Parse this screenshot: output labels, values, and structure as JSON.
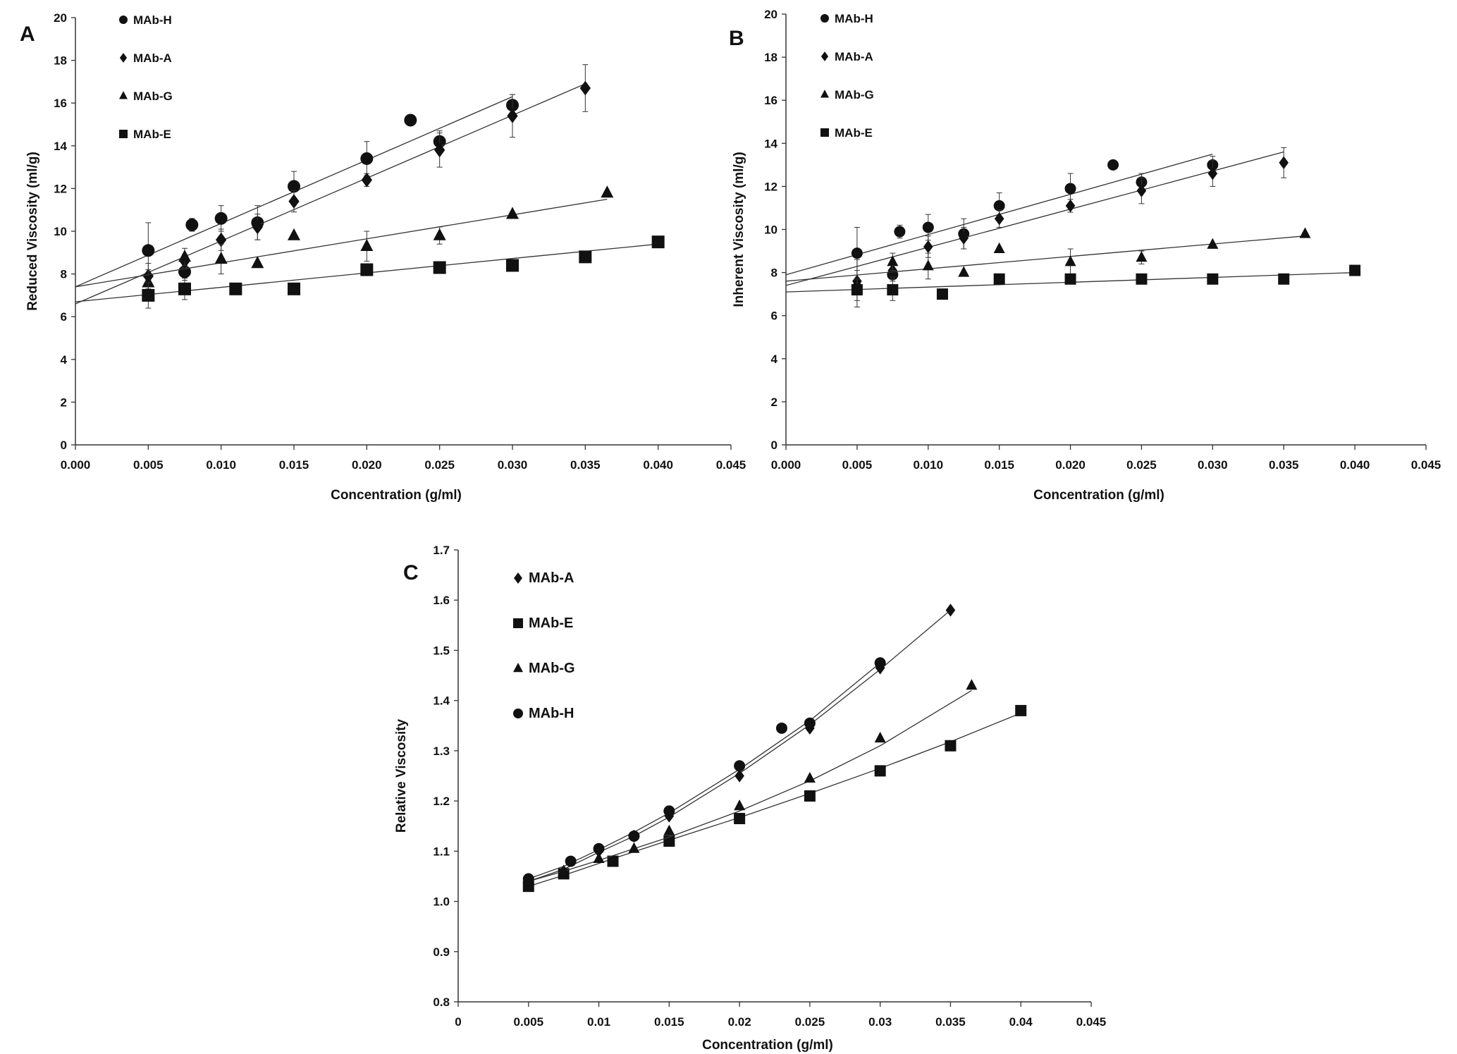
{
  "chart_data": [
    {
      "panel": "A",
      "type": "scatter",
      "xlabel": "Concentration (g/ml)",
      "ylabel": "Reduced Viscosity  (ml/g)",
      "xlim": [
        0,
        0.045
      ],
      "ylim": [
        0,
        20
      ],
      "xticks": [
        "0.000",
        "0.005",
        "0.010",
        "0.015",
        "0.020",
        "0.025",
        "0.030",
        "0.035",
        "0.040",
        "0.045"
      ],
      "yticks": [
        "0",
        "2",
        "4",
        "6",
        "8",
        "10",
        "12",
        "14",
        "16",
        "18",
        "20"
      ],
      "legend_position": "top-left",
      "grid": false,
      "series": [
        {
          "name": "MAb-H",
          "marker": "circle",
          "x": [
            0.005,
            0.0075,
            0.008,
            0.01,
            0.0125,
            0.015,
            0.02,
            0.023,
            0.025,
            0.03
          ],
          "y": [
            9.1,
            8.1,
            10.3,
            10.6,
            10.4,
            12.1,
            13.4,
            15.2,
            14.2,
            15.9
          ],
          "err": [
            1.3,
            0.4,
            0.3,
            0.6,
            0.8,
            0.7,
            0.8,
            0,
            0.5,
            0.5
          ],
          "fit": {
            "x": [
              0,
              0.03
            ],
            "y": [
              7.4,
              16.3
            ]
          }
        },
        {
          "name": "MAb-A",
          "marker": "diamond",
          "x": [
            0.005,
            0.0075,
            0.01,
            0.0125,
            0.015,
            0.02,
            0.025,
            0.03,
            0.035
          ],
          "y": [
            7.9,
            8.6,
            9.6,
            10.2,
            11.4,
            12.4,
            13.8,
            15.4,
            16.7
          ],
          "err": [
            0.6,
            0.3,
            0.5,
            0.6,
            0.5,
            0.3,
            0.8,
            1.0,
            1.1
          ],
          "fit": {
            "x": [
              0,
              0.035
            ],
            "y": [
              6.6,
              16.9
            ]
          }
        },
        {
          "name": "MAb-G",
          "marker": "triangle",
          "x": [
            0.005,
            0.0075,
            0.01,
            0.0125,
            0.015,
            0.02,
            0.025,
            0.03,
            0.0365
          ],
          "y": [
            7.6,
            8.8,
            8.7,
            8.5,
            9.8,
            9.3,
            9.8,
            10.8,
            11.8
          ],
          "err": [
            0.6,
            0.4,
            0.7,
            0,
            0,
            0.7,
            0.4,
            0,
            0
          ],
          "fit": {
            "x": [
              0,
              0.0365
            ],
            "y": [
              7.4,
              11.5
            ]
          }
        },
        {
          "name": "MAb-E",
          "marker": "square",
          "x": [
            0.005,
            0.0075,
            0.011,
            0.015,
            0.02,
            0.025,
            0.03,
            0.035,
            0.04
          ],
          "y": [
            7.0,
            7.3,
            7.3,
            7.3,
            8.2,
            8.3,
            8.4,
            8.8,
            9.5
          ],
          "err": [
            0.6,
            0.5,
            0,
            0,
            0,
            0,
            0,
            0,
            0
          ],
          "fit": {
            "x": [
              0,
              0.04
            ],
            "y": [
              6.7,
              9.4
            ]
          }
        }
      ]
    },
    {
      "panel": "B",
      "type": "scatter",
      "xlabel": "Concentration (g/ml)",
      "ylabel": "Inherent Viscosity  (ml/g)",
      "xlim": [
        0,
        0.045
      ],
      "ylim": [
        0,
        20
      ],
      "xticks": [
        "0.000",
        "0.005",
        "0.010",
        "0.015",
        "0.020",
        "0.025",
        "0.030",
        "0.035",
        "0.040",
        "0.045"
      ],
      "yticks": [
        "0",
        "2",
        "4",
        "6",
        "8",
        "10",
        "12",
        "14",
        "16",
        "18",
        "20"
      ],
      "legend_position": "top-left",
      "grid": false,
      "series": [
        {
          "name": "MAb-H",
          "marker": "circle",
          "x": [
            0.005,
            0.0075,
            0.008,
            0.01,
            0.0125,
            0.015,
            0.02,
            0.023,
            0.025,
            0.03
          ],
          "y": [
            8.9,
            7.9,
            9.9,
            10.1,
            9.8,
            11.1,
            11.9,
            13.0,
            12.2,
            13.0
          ],
          "err": [
            1.2,
            0.3,
            0.3,
            0.6,
            0.7,
            0.6,
            0.7,
            0,
            0.4,
            0.4
          ],
          "fit": {
            "x": [
              0,
              0.03
            ],
            "y": [
              7.9,
              13.5
            ]
          }
        },
        {
          "name": "MAb-A",
          "marker": "diamond",
          "x": [
            0.005,
            0.0075,
            0.01,
            0.0125,
            0.015,
            0.02,
            0.025,
            0.03,
            0.035
          ],
          "y": [
            7.6,
            8.1,
            9.2,
            9.6,
            10.5,
            11.1,
            11.8,
            12.6,
            13.1
          ],
          "err": [
            0.5,
            0.3,
            0.5,
            0.5,
            0.4,
            0.3,
            0.6,
            0.6,
            0.7
          ],
          "fit": {
            "x": [
              0,
              0.035
            ],
            "y": [
              7.4,
              13.6
            ]
          }
        },
        {
          "name": "MAb-G",
          "marker": "triangle",
          "x": [
            0.005,
            0.0075,
            0.01,
            0.0125,
            0.015,
            0.02,
            0.025,
            0.03,
            0.0365
          ],
          "y": [
            7.5,
            8.5,
            8.3,
            8.0,
            9.1,
            8.5,
            8.7,
            9.3,
            9.8
          ],
          "err": [
            1.1,
            0.4,
            0.6,
            0,
            0,
            0.6,
            0.3,
            0,
            0
          ],
          "fit": {
            "x": [
              0,
              0.0365
            ],
            "y": [
              7.6,
              9.7
            ]
          }
        },
        {
          "name": "MAb-E",
          "marker": "square",
          "x": [
            0.005,
            0.0075,
            0.011,
            0.015,
            0.02,
            0.025,
            0.03,
            0.035,
            0.04
          ],
          "y": [
            7.2,
            7.2,
            7.0,
            7.7,
            7.7,
            7.7,
            7.7,
            7.7,
            8.1
          ],
          "err": [
            0.5,
            0.5,
            0,
            0,
            0,
            0,
            0,
            0,
            0
          ],
          "fit": {
            "x": [
              0,
              0.04
            ],
            "y": [
              7.1,
              8.0
            ]
          }
        }
      ]
    },
    {
      "panel": "C",
      "type": "scatter",
      "xlabel": "Concentration (g/ml)",
      "ylabel": "Relative Viscosity",
      "xlim": [
        0,
        0.045
      ],
      "ylim": [
        0.8,
        1.7
      ],
      "xticks": [
        "0",
        "0.005",
        "0.01",
        "0.015",
        "0.02",
        "0.025",
        "0.03",
        "0.035",
        "0.04",
        "0.045"
      ],
      "yticks": [
        "0.8",
        "0.9",
        "1.0",
        "1.1",
        "1.2",
        "1.3",
        "1.4",
        "1.5",
        "1.6",
        "1.7"
      ],
      "legend_position": "top-left",
      "grid": false,
      "series": [
        {
          "name": "MAb-A",
          "marker": "diamond",
          "x": [
            0.005,
            0.0075,
            0.01,
            0.0125,
            0.015,
            0.02,
            0.025,
            0.03,
            0.035
          ],
          "y": [
            1.04,
            1.06,
            1.1,
            1.13,
            1.17,
            1.25,
            1.345,
            1.465,
            1.58
          ],
          "fit": {
            "x": [
              0.005,
              0.0075,
              0.01,
              0.0125,
              0.015,
              0.02,
              0.025,
              0.03,
              0.035
            ],
            "y": [
              1.04,
              1.064,
              1.098,
              1.13,
              1.168,
              1.255,
              1.352,
              1.462,
              1.58
            ]
          }
        },
        {
          "name": "MAb-E",
          "marker": "square",
          "x": [
            0.005,
            0.0075,
            0.011,
            0.015,
            0.02,
            0.025,
            0.03,
            0.035,
            0.04
          ],
          "y": [
            1.03,
            1.055,
            1.08,
            1.12,
            1.165,
            1.21,
            1.26,
            1.31,
            1.38
          ],
          "fit": {
            "x": [
              0.005,
              0.0075,
              0.011,
              0.015,
              0.02,
              0.025,
              0.03,
              0.035,
              0.04
            ],
            "y": [
              1.03,
              1.052,
              1.085,
              1.122,
              1.167,
              1.215,
              1.265,
              1.318,
              1.375
            ]
          }
        },
        {
          "name": "MAb-G",
          "marker": "triangle",
          "x": [
            0.005,
            0.0075,
            0.01,
            0.0125,
            0.015,
            0.02,
            0.025,
            0.03,
            0.0365
          ],
          "y": [
            1.04,
            1.06,
            1.085,
            1.105,
            1.14,
            1.19,
            1.245,
            1.325,
            1.43
          ],
          "fit": {
            "x": [
              0.005,
              0.0075,
              0.01,
              0.0125,
              0.015,
              0.02,
              0.025,
              0.03,
              0.0365
            ],
            "y": [
              1.04,
              1.06,
              1.082,
              1.105,
              1.128,
              1.18,
              1.24,
              1.31,
              1.42
            ]
          }
        },
        {
          "name": "MAb-H",
          "marker": "circle",
          "x": [
            0.005,
            0.008,
            0.01,
            0.0125,
            0.015,
            0.02,
            0.023,
            0.025,
            0.03
          ],
          "y": [
            1.045,
            1.08,
            1.105,
            1.13,
            1.18,
            1.27,
            1.345,
            1.355,
            1.475
          ],
          "fit": {
            "x": [
              0.005,
              0.0075,
              0.01,
              0.0125,
              0.015,
              0.02,
              0.025,
              0.03
            ],
            "y": [
              1.045,
              1.07,
              1.103,
              1.138,
              1.176,
              1.263,
              1.36,
              1.475
            ]
          }
        }
      ]
    }
  ]
}
